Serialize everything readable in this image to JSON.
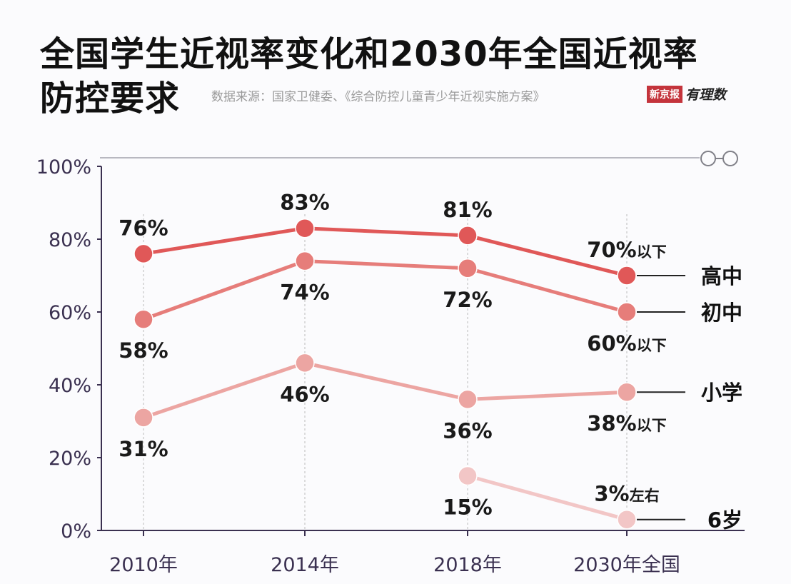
{
  "header": {
    "title_line1": "全国学生近视率变化和2030年全国近视率",
    "title_line2": "防控要求",
    "source": "数据来源：国家卫健委、《综合防控儿童青少年近视实施方案》",
    "logo_text": [
      "新京报",
      "有理数"
    ]
  },
  "chart_data": {
    "type": "line",
    "title": "全国学生近视率变化和2030年全国近视率防控要求",
    "categories": [
      "2010年",
      "2014年",
      "2018年",
      "2030年全国"
    ],
    "ylim": [
      0,
      100
    ],
    "yticks": [
      "0%",
      "20%",
      "40%",
      "60%",
      "80%",
      "100%"
    ],
    "grid": false,
    "series": [
      {
        "name": "高中",
        "color": "#e05858",
        "values": [
          76,
          83,
          81,
          70
        ],
        "labels": [
          "76%",
          "83%",
          "81%",
          "70%以下"
        ]
      },
      {
        "name": "初中",
        "color": "#e67d7a",
        "values": [
          58,
          74,
          72,
          60
        ],
        "labels": [
          "58%",
          "74%",
          "72%",
          "60%以下"
        ]
      },
      {
        "name": "小学",
        "color": "#eca5a2",
        "values": [
          31,
          46,
          36,
          38
        ],
        "labels": [
          "31%",
          "46%",
          "36%",
          "38%以下"
        ]
      },
      {
        "name": "6岁",
        "color": "#f2c6c6",
        "values": [
          null,
          null,
          15,
          3
        ],
        "labels": [
          "",
          "",
          "15%",
          "3%左右"
        ]
      }
    ]
  }
}
